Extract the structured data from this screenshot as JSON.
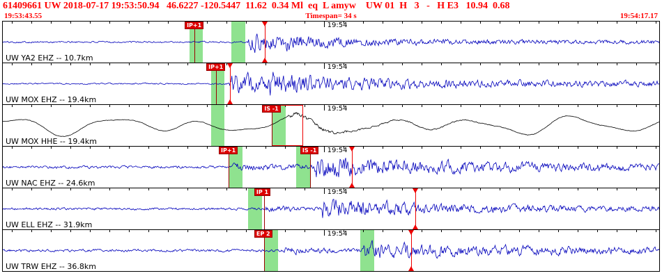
{
  "header": {
    "line1": "61409661 UW 2018-07-17 19:53:50.94   46.6227 -120.5447  11.62  0.34 Ml  eq  L amyw    UW 01  H   3   -   H E3   10.94  0.68",
    "start_time": "19:53:43.55",
    "timespan_label": "Timespan= 34 s",
    "end_time": "19:54:17.17"
  },
  "timeline": {
    "minute_label": "19:54",
    "minute_frac": 0.4893,
    "tick_offset_frac": 0.0134,
    "tick_step_frac": 0.02975
  },
  "colors": {
    "header_text": "#ff0000",
    "trace_blue": "#0000bb",
    "trace_black": "#000000",
    "band_green": "#8fe28f",
    "pick_red": "#dd0000",
    "marker_red": "#ee0000"
  },
  "channels": [
    {
      "label": "UW YA2 EHZ -- 10.7km",
      "color": "#0000bb",
      "waveform": {
        "seed": 101,
        "noise": 1.0,
        "smooth": 0.45,
        "bursts": [
          {
            "start": 0.373,
            "amp": 11,
            "decay": 55,
            "sustain": 1.2
          },
          {
            "start": 0.43,
            "amp": 4,
            "decay": 160,
            "sustain": 0
          }
        ]
      },
      "markers": {
        "bands": [
          {
            "x": 0.284,
            "w": 0.021
          },
          {
            "x": 0.348,
            "w": 0.021
          }
        ],
        "picks": [
          {
            "label": "IP+1",
            "x": 0.292
          }
        ],
        "triangles": [
          0.399
        ]
      }
    },
    {
      "label": "UW MOX EHZ -- 19.4km",
      "color": "#0000bb",
      "waveform": {
        "seed": 202,
        "noise": 0.8,
        "smooth": 0.5,
        "bursts": [
          {
            "start": 0.345,
            "amp": 13,
            "decay": 45,
            "sustain": 1.8
          },
          {
            "start": 0.405,
            "amp": 8,
            "decay": 200,
            "sustain": 0
          }
        ]
      },
      "markers": {
        "bands": [
          {
            "x": 0.317,
            "w": 0.021
          }
        ],
        "picks": [
          {
            "label": "IP+1",
            "x": 0.325
          }
        ],
        "triangles": [
          0.346
        ]
      }
    },
    {
      "label": "UW MOX HHE -- 19.4km",
      "color": "#000000",
      "waveform": {
        "seed": 303,
        "noise": 0.5,
        "smooth": 0.5,
        "lp": {
          "a1": 8,
          "t1": 21,
          "p1": 0.5,
          "a2": 5,
          "t2": 34,
          "p2": 2.2,
          "a3": 3,
          "t3": 12,
          "p3": 4.0
        },
        "bursts": [
          {
            "start": 0.435,
            "amp": 4,
            "decay": 110,
            "sustain": 0
          }
        ]
      },
      "markers": {
        "bands": [
          {
            "x": 0.317,
            "w": 0.021
          },
          {
            "x": 0.41,
            "w": 0.021
          }
        ],
        "picks": [
          {
            "label": "IS -1",
            "x": 0.41
          }
        ],
        "redbox": {
          "x": 0.41,
          "w": 0.045
        },
        "triangles": []
      }
    },
    {
      "label": "UW NAC EHZ -- 24.6km",
      "color": "#0000bb",
      "waveform": {
        "seed": 404,
        "noise": 1.5,
        "smooth": 0.5,
        "bursts": [
          {
            "start": 0.348,
            "amp": 3,
            "decay": 70,
            "sustain": 0.4
          },
          {
            "start": 0.475,
            "amp": 9,
            "decay": 260,
            "sustain": 0.6
          }
        ]
      },
      "markers": {
        "bands": [
          {
            "x": 0.344,
            "w": 0.021
          },
          {
            "x": 0.447,
            "w": 0.021
          }
        ],
        "picks": [
          {
            "label": "IP+1",
            "x": 0.344
          },
          {
            "label": "IS -1",
            "x": 0.468
          }
        ],
        "triangles": [
          0.532
        ]
      }
    },
    {
      "label": "UW ELL EHZ -- 31.9km",
      "color": "#0000bb",
      "waveform": {
        "seed": 505,
        "noise": 1.3,
        "smooth": 0.5,
        "bursts": [
          {
            "start": 0.4,
            "amp": 2,
            "decay": 60,
            "sustain": 0.3
          },
          {
            "start": 0.487,
            "amp": 9,
            "decay": 200,
            "sustain": 0.5
          }
        ]
      },
      "markers": {
        "bands": [
          {
            "x": 0.374,
            "w": 0.021
          }
        ],
        "picks": [
          {
            "label": "IP 1",
            "x": 0.398
          }
        ],
        "triangles": [
          0.628
        ]
      }
    },
    {
      "label": "UW TRW EHZ -- 36.8km",
      "color": "#0000bb",
      "waveform": {
        "seed": 606,
        "noise": 1.5,
        "smooth": 0.5,
        "bursts": [
          {
            "start": 0.428,
            "amp": 2.5,
            "decay": 70,
            "sustain": 0.3
          },
          {
            "start": 0.55,
            "amp": 7,
            "decay": 260,
            "sustain": 0.5
          }
        ]
      },
      "markers": {
        "bands": [
          {
            "x": 0.398,
            "w": 0.021
          },
          {
            "x": 0.545,
            "w": 0.021
          }
        ],
        "picks": [
          {
            "label": "EP 2",
            "x": 0.398
          }
        ],
        "triangles": [
          0.622
        ]
      }
    }
  ]
}
